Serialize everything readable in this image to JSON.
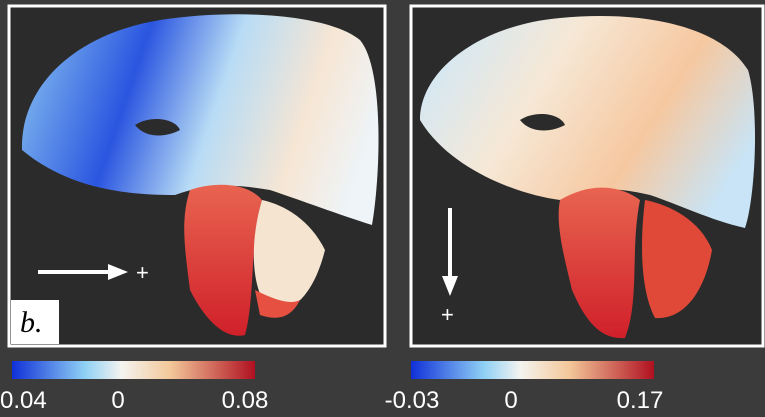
{
  "panel_label": "b.",
  "panels": [
    {
      "arrow_label": "+",
      "colorbar": {
        "min_label": "0.04",
        "mid_label": "0",
        "max_label": "0.08"
      }
    },
    {
      "arrow_label": "+",
      "colorbar": {
        "min_label": "-0.03",
        "mid_label": "0",
        "max_label": "0.17"
      }
    }
  ]
}
